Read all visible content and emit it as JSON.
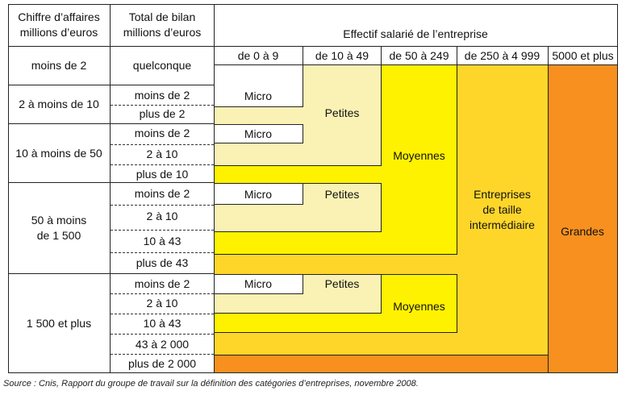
{
  "header": {
    "ca": "Chiffre d’affaires\nmillions d’euros",
    "bilan": "Total de bilan\nmillions d’euros",
    "effectif": "Effectif salarié de l’entreprise"
  },
  "effectif_columns": [
    "de 0 à 9",
    "de 10 à 49",
    "de 50 à 249",
    "de 250 à 4 999",
    "5000 et plus"
  ],
  "ca_rows": [
    "moins de 2",
    "2 à moins de 10",
    "10 à moins de 50",
    "50 à moins\nde 1 500",
    "1 500 et plus"
  ],
  "bilan_rows": [
    "quelconque",
    "moins de 2",
    "plus de 2",
    "moins de 2",
    "2 à 10",
    "plus de 10",
    "moins de 2",
    "2 à 10",
    "10 à 43",
    "plus de 43",
    "moins de 2",
    "2 à 10",
    "10 à 43",
    "43 à 2 000",
    "plus de 2 000"
  ],
  "categories": {
    "micro": "Micro",
    "petites": "Petites",
    "moyennes": "Moyennes",
    "eti": "Entreprises\nde taille\nintermédiaire",
    "grandes": "Grandes"
  },
  "colors": {
    "micro": "#ffffff",
    "petites": "#faf2b4",
    "moyennes": "#fff200",
    "eti": "#fed62a",
    "grandes": "#f7901e",
    "border": "#222222"
  },
  "source": "Source : Cnis, Rapport du groupe de travail sur la définition des catégories d’entreprises, novembre 2008."
}
